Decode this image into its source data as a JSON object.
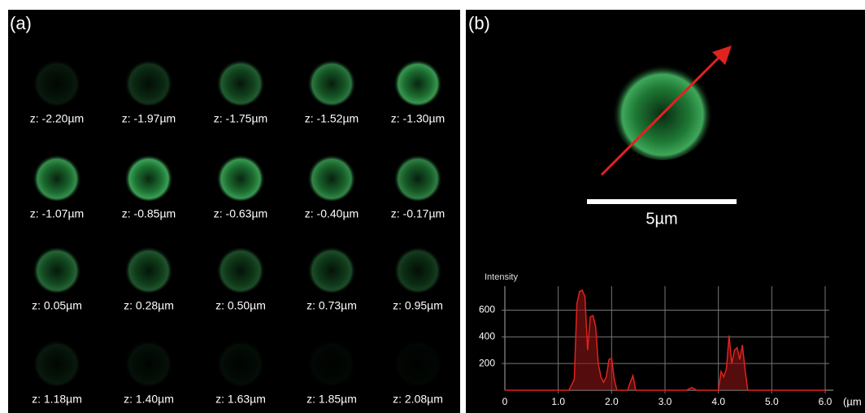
{
  "panel_a": {
    "label": "(a)",
    "slices": [
      "z: -2.20µm",
      "z: -1.97µm",
      "z: -1.75µm",
      "z: -1.52µm",
      "z: -1.30µm",
      "z: -1.07µm",
      "z: -0.85µm",
      "z: -0.63µm",
      "z: -0.40µm",
      "z: -0.17µm",
      "z: 0.05µm",
      "z: 0.28µm",
      "z: 0.50µm",
      "z: 0.73µm",
      "z: 0.95µm",
      "z: 1.18µm",
      "z: 1.40µm",
      "z: 1.63µm",
      "z: 1.85µm",
      "z: 2.08µm"
    ]
  },
  "panel_b": {
    "label": "(b)",
    "scale_bar": "5µm"
  },
  "chart_data": {
    "type": "line",
    "y_label": "Intensity",
    "x_label": "(µm",
    "x": [
      0,
      1.2,
      1.3,
      1.35,
      1.4,
      1.45,
      1.5,
      1.55,
      1.6,
      1.65,
      1.7,
      1.75,
      1.8,
      1.85,
      1.9,
      1.95,
      2.0,
      2.05,
      2.1,
      2.3,
      2.35,
      2.4,
      2.45,
      3.0,
      3.4,
      3.5,
      3.6,
      4.0,
      4.05,
      4.1,
      4.15,
      4.2,
      4.25,
      4.3,
      4.35,
      4.4,
      4.45,
      4.5,
      4.55,
      6.0
    ],
    "series": [
      {
        "color": "#e0231e",
        "values": [
          0,
          0,
          80,
          650,
          740,
          750,
          700,
          300,
          550,
          560,
          480,
          200,
          100,
          60,
          100,
          230,
          240,
          80,
          0,
          0,
          60,
          110,
          0,
          0,
          0,
          20,
          0,
          0,
          140,
          100,
          160,
          410,
          200,
          300,
          320,
          230,
          340,
          150,
          0,
          0
        ]
      }
    ],
    "xlim": [
      0,
      6.0
    ],
    "ylim": [
      0,
      780
    ],
    "xticks": [
      0,
      {
        "value": 1,
        "label": "1.0"
      },
      {
        "value": 2,
        "label": "2.0"
      },
      {
        "value": 3,
        "label": "3.0"
      },
      {
        "value": 4,
        "label": "4.0"
      },
      {
        "value": 5,
        "label": "5.0"
      },
      {
        "value": 6,
        "label": "6.0"
      }
    ],
    "yticks": [
      200,
      400,
      600
    ],
    "grid": true
  }
}
